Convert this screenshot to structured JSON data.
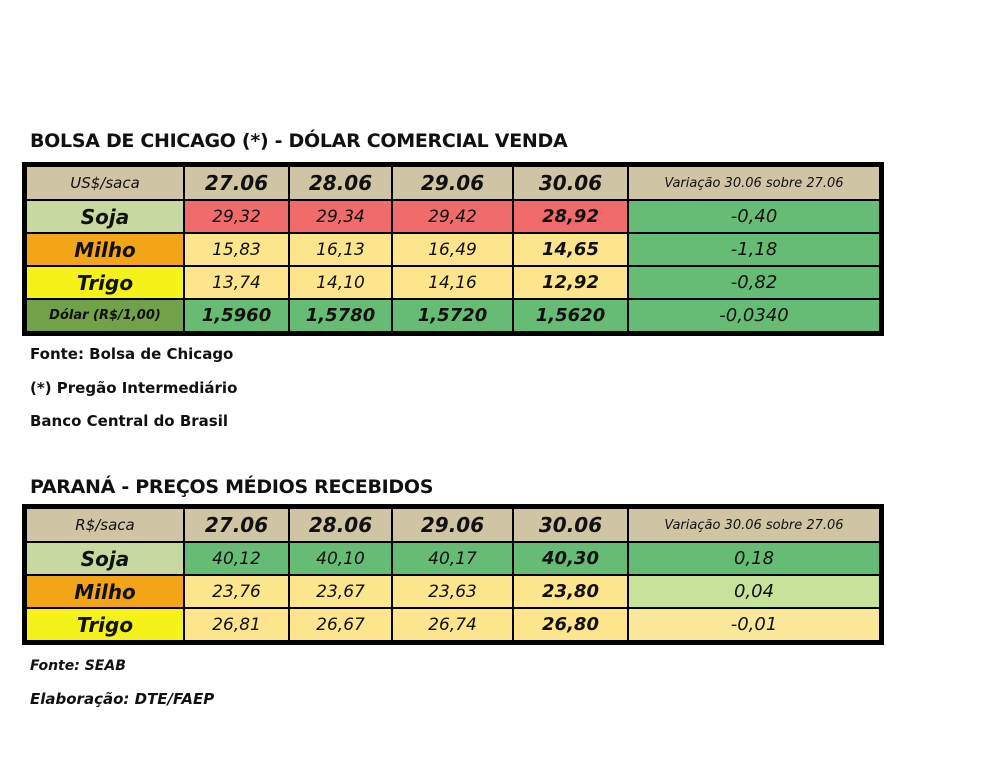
{
  "chicago": {
    "title": "BOLSA DE CHICAGO (*) - DÓLAR COMERCIAL VENDA",
    "header": [
      "US$/saca",
      "27.06",
      "28.06",
      "29.06",
      "30.06",
      "Variação 30.06 sobre 27.06"
    ],
    "rows": [
      {
        "label": "Soja",
        "values": [
          "29,32",
          "29,34",
          "29,42",
          "28,92"
        ],
        "variation": "-0,40"
      },
      {
        "label": "Milho",
        "values": [
          "15,83",
          "16,13",
          "16,49",
          "14,65"
        ],
        "variation": "-1,18"
      },
      {
        "label": "Trigo",
        "values": [
          "13,74",
          "14,10",
          "14,16",
          "12,92"
        ],
        "variation": "-0,82"
      },
      {
        "label": "Dólar (R$/1,00)",
        "values": [
          "1,5960",
          "1,5780",
          "1,5720",
          "1,5620"
        ],
        "variation": "-0,0340"
      }
    ],
    "notes": [
      "Fonte: Bolsa de Chicago",
      "(*) Pregão Intermediário",
      "Banco Central do Brasil"
    ]
  },
  "parana": {
    "title": "PARANÁ - PREÇOS MÉDIOS RECEBIDOS",
    "header": [
      "R$/saca",
      "27.06",
      "28.06",
      "29.06",
      "30.06",
      "Variação 30.06 sobre 27.06"
    ],
    "rows": [
      {
        "label": "Soja",
        "values": [
          "40,12",
          "40,10",
          "40,17",
          "40,30"
        ],
        "variation": "0,18"
      },
      {
        "label": "Milho",
        "values": [
          "23,76",
          "23,67",
          "23,63",
          "23,80"
        ],
        "variation": "0,04"
      },
      {
        "label": "Trigo",
        "values": [
          "26,81",
          "26,67",
          "26,74",
          "26,80"
        ],
        "variation": "-0,01"
      }
    ],
    "notes": [
      "Fonte: SEAB",
      "Elaboração: DTE/FAEP"
    ]
  },
  "colors": {
    "header_bg": "#cfc5a4",
    "soja_label": "#c7d9a0",
    "milho_label": "#f4a417",
    "trigo_label": "#f5f21a",
    "dolar_label": "#71a24a",
    "red_cell": "#ef6b6c",
    "yellow_cell": "#fde58e",
    "green_cell": "#66bc74",
    "light_green_cell": "#c9e29a",
    "light_yellow_cell": "#fbe79a"
  }
}
